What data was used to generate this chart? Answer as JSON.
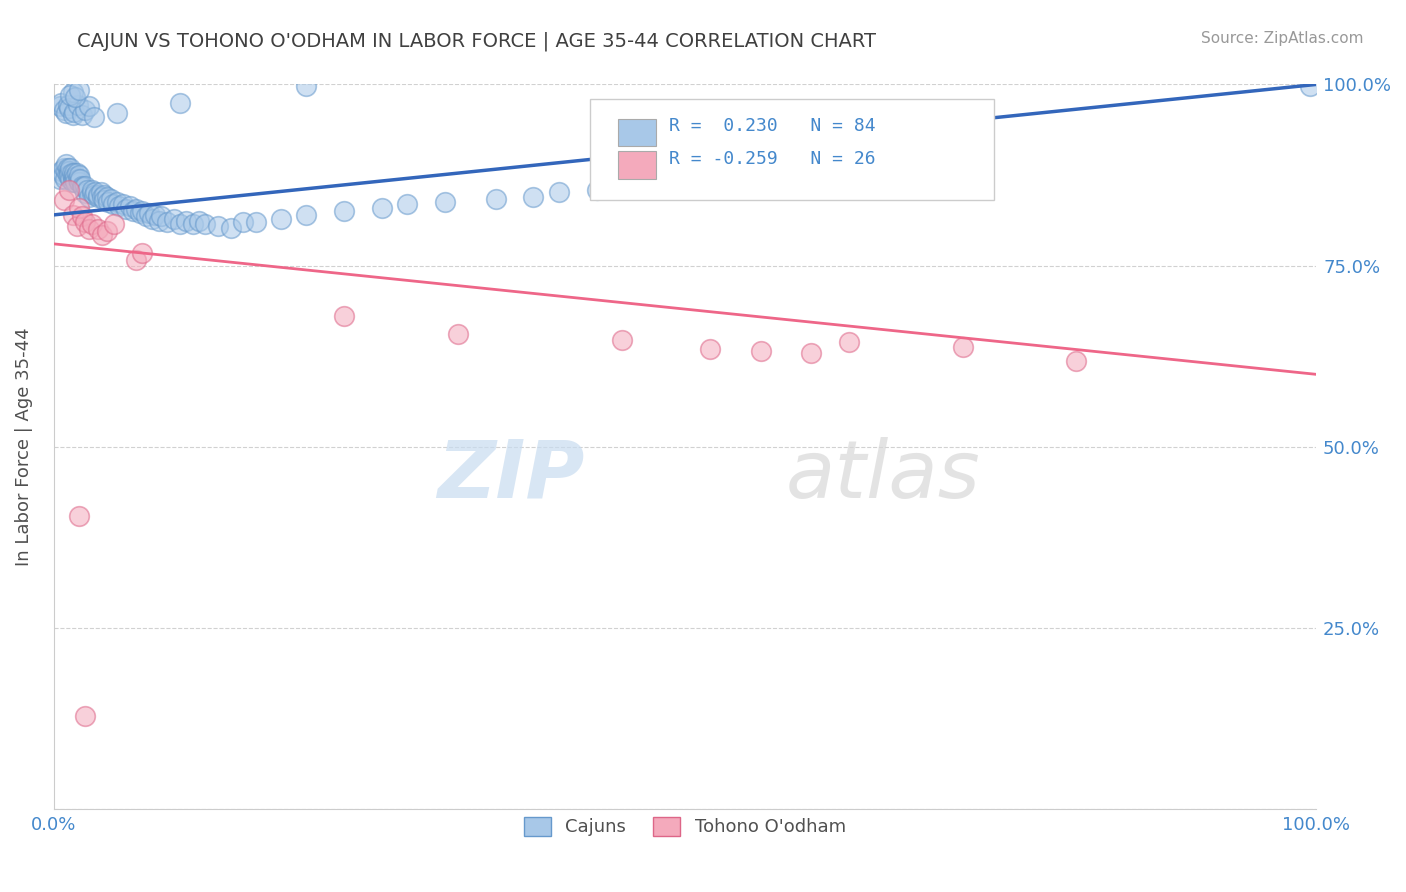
{
  "title": "CAJUN VS TOHONO O'ODHAM IN LABOR FORCE | AGE 35-44 CORRELATION CHART",
  "source": "Source: ZipAtlas.com",
  "ylabel": "In Labor Force | Age 35-44",
  "xlim": [
    0,
    1
  ],
  "ylim": [
    0,
    1
  ],
  "cajun_color": "#A8C8E8",
  "cajun_edge_color": "#6699CC",
  "tohono_color": "#F4AABC",
  "tohono_edge_color": "#DD6688",
  "cajun_line_color": "#3366BB",
  "tohono_line_color": "#EE6688",
  "cajun_R": 0.23,
  "cajun_N": 84,
  "tohono_R": -0.259,
  "tohono_N": 26,
  "background_color": "#ffffff",
  "grid_color": "#cccccc",
  "title_color": "#404040",
  "tick_color": "#4488CC",
  "cajun_x": [
    0.005,
    0.006,
    0.007,
    0.008,
    0.009,
    0.01,
    0.01,
    0.011,
    0.011,
    0.012,
    0.012,
    0.013,
    0.013,
    0.014,
    0.015,
    0.015,
    0.016,
    0.016,
    0.017,
    0.017,
    0.018,
    0.019,
    0.02,
    0.02,
    0.021,
    0.022,
    0.023,
    0.025,
    0.025,
    0.026,
    0.028,
    0.03,
    0.03,
    0.032,
    0.033,
    0.035,
    0.035,
    0.037,
    0.038,
    0.04,
    0.04,
    0.042,
    0.043,
    0.045,
    0.047,
    0.05,
    0.052,
    0.055,
    0.057,
    0.06,
    0.063,
    0.065,
    0.068,
    0.07,
    0.073,
    0.075,
    0.078,
    0.08,
    0.083,
    0.085,
    0.09,
    0.095,
    0.1,
    0.105,
    0.11,
    0.115,
    0.12,
    0.13,
    0.14,
    0.15,
    0.16,
    0.18,
    0.2,
    0.23,
    0.26,
    0.28,
    0.31,
    0.35,
    0.38,
    0.4,
    0.43,
    0.46,
    0.49,
    0.995
  ],
  "cajun_y": [
    0.87,
    0.88,
    0.875,
    0.885,
    0.87,
    0.88,
    0.89,
    0.885,
    0.875,
    0.88,
    0.875,
    0.87,
    0.885,
    0.878,
    0.872,
    0.865,
    0.87,
    0.878,
    0.872,
    0.865,
    0.878,
    0.87,
    0.865,
    0.875,
    0.87,
    0.86,
    0.858,
    0.85,
    0.86,
    0.855,
    0.845,
    0.85,
    0.855,
    0.848,
    0.852,
    0.845,
    0.848,
    0.852,
    0.845,
    0.848,
    0.84,
    0.845,
    0.838,
    0.842,
    0.835,
    0.838,
    0.832,
    0.835,
    0.828,
    0.832,
    0.825,
    0.828,
    0.822,
    0.825,
    0.818,
    0.822,
    0.815,
    0.82,
    0.812,
    0.818,
    0.81,
    0.815,
    0.808,
    0.812,
    0.808,
    0.812,
    0.808,
    0.805,
    0.802,
    0.81,
    0.81,
    0.815,
    0.82,
    0.825,
    0.83,
    0.835,
    0.838,
    0.842,
    0.845,
    0.852,
    0.855,
    0.86,
    0.878,
    0.998
  ],
  "cajun_y_top": [
    0.97,
    0.975,
    0.965,
    0.96,
    0.972,
    0.968,
    0.958,
    0.962,
    0.972,
    0.958,
    0.965,
    0.97,
    0.955,
    0.96,
    0.998,
    0.99,
    0.985,
    0.982,
    0.992,
    0.975
  ],
  "cajun_x_top": [
    0.005,
    0.006,
    0.008,
    0.01,
    0.011,
    0.012,
    0.015,
    0.016,
    0.019,
    0.022,
    0.025,
    0.028,
    0.032,
    0.05,
    0.2,
    0.015,
    0.013,
    0.017,
    0.02,
    0.1
  ],
  "tohono_x": [
    0.008,
    0.012,
    0.015,
    0.018,
    0.02,
    0.022,
    0.025,
    0.028,
    0.03,
    0.035,
    0.038,
    0.042,
    0.048,
    0.065,
    0.07,
    0.23,
    0.32,
    0.45,
    0.52,
    0.56,
    0.6,
    0.63,
    0.72,
    0.81,
    0.02,
    0.025
  ],
  "tohono_y": [
    0.84,
    0.855,
    0.82,
    0.805,
    0.83,
    0.818,
    0.81,
    0.8,
    0.808,
    0.8,
    0.792,
    0.798,
    0.808,
    0.758,
    0.768,
    0.68,
    0.655,
    0.648,
    0.635,
    0.632,
    0.63,
    0.645,
    0.638,
    0.618,
    0.405,
    0.128
  ]
}
